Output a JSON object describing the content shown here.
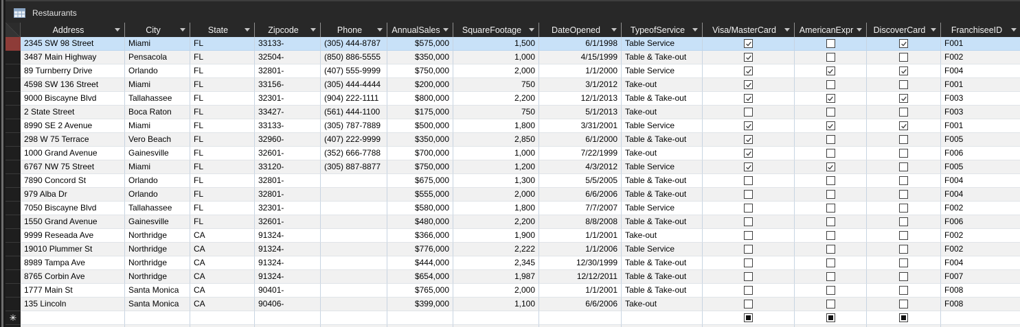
{
  "window": {
    "tab_title": "Restaurants"
  },
  "colors": {
    "chrome_bg": "#282828",
    "selection_row_bg": "#c8e1f8",
    "selected_row_selector": "#8e3c38",
    "header_text": "#f2f2f2",
    "grid_vertical": "#c7d4e2",
    "alt_row_bg": "#f1f1f1"
  },
  "table": {
    "columns": [
      {
        "id": "address",
        "label": "Address"
      },
      {
        "id": "city",
        "label": "City"
      },
      {
        "id": "state",
        "label": "State"
      },
      {
        "id": "zipcode",
        "label": "Zipcode"
      },
      {
        "id": "phone",
        "label": "Phone"
      },
      {
        "id": "annual_sales",
        "label": "AnnualSales"
      },
      {
        "id": "square_footage",
        "label": "SquareFootage"
      },
      {
        "id": "date_opened",
        "label": "DateOpened"
      },
      {
        "id": "type_of_service",
        "label": "TypeofService"
      },
      {
        "id": "visa_mastercard",
        "label": "Visa/MasterCard"
      },
      {
        "id": "american_express",
        "label": "AmericanExpr"
      },
      {
        "id": "discover_card",
        "label": "DiscoverCard"
      },
      {
        "id": "franchisee_id",
        "label": "FranchiseeID"
      }
    ],
    "selected_row_index": 0,
    "rows": [
      {
        "address": "2345 SW 98 Street",
        "city": "Miami",
        "state": "FL",
        "zipcode": "33133-",
        "phone": "(305) 444-8787",
        "annual_sales": "$575,000",
        "square_footage": "1,500",
        "date_opened": "6/1/1998",
        "type_of_service": "Table Service",
        "visa_mastercard": true,
        "american_express": false,
        "discover_card": true,
        "franchisee_id": "F001"
      },
      {
        "address": "3487 Main Highway",
        "city": "Pensacola",
        "state": "FL",
        "zipcode": "32504-",
        "phone": "(850) 886-5555",
        "annual_sales": "$350,000",
        "square_footage": "1,000",
        "date_opened": "4/15/1999",
        "type_of_service": "Table & Take-out",
        "visa_mastercard": true,
        "american_express": false,
        "discover_card": false,
        "franchisee_id": "F002"
      },
      {
        "address": "89 Turnberry Drive",
        "city": "Orlando",
        "state": "FL",
        "zipcode": "32801-",
        "phone": "(407) 555-9999",
        "annual_sales": "$750,000",
        "square_footage": "2,000",
        "date_opened": "1/1/2000",
        "type_of_service": "Table Service",
        "visa_mastercard": true,
        "american_express": true,
        "discover_card": true,
        "franchisee_id": "F004"
      },
      {
        "address": "4598 SW 136 Street",
        "city": "Miami",
        "state": "FL",
        "zipcode": "33156-",
        "phone": "(305) 444-4444",
        "annual_sales": "$200,000",
        "square_footage": "750",
        "date_opened": "3/1/2012",
        "type_of_service": "Take-out",
        "visa_mastercard": true,
        "american_express": false,
        "discover_card": false,
        "franchisee_id": "F001"
      },
      {
        "address": "9000 Biscayne Blvd",
        "city": "Tallahassee",
        "state": "FL",
        "zipcode": "32301-",
        "phone": "(904) 222-1111",
        "annual_sales": "$800,000",
        "square_footage": "2,200",
        "date_opened": "12/1/2013",
        "type_of_service": "Table & Take-out",
        "visa_mastercard": true,
        "american_express": true,
        "discover_card": true,
        "franchisee_id": "F003"
      },
      {
        "address": "2 State Street",
        "city": "Boca Raton",
        "state": "FL",
        "zipcode": "33427-",
        "phone": "(561) 444-1100",
        "annual_sales": "$175,000",
        "square_footage": "750",
        "date_opened": "5/1/2013",
        "type_of_service": "Take-out",
        "visa_mastercard": false,
        "american_express": false,
        "discover_card": false,
        "franchisee_id": "F003"
      },
      {
        "address": "8990 SE 2 Avenue",
        "city": "Miami",
        "state": "FL",
        "zipcode": "33133-",
        "phone": "(305) 787-7889",
        "annual_sales": "$500,000",
        "square_footage": "1,800",
        "date_opened": "3/31/2001",
        "type_of_service": "Table Service",
        "visa_mastercard": true,
        "american_express": true,
        "discover_card": true,
        "franchisee_id": "F001"
      },
      {
        "address": "298 W 75 Terrace",
        "city": "Vero Beach",
        "state": "FL",
        "zipcode": "32960-",
        "phone": "(407) 222-9999",
        "annual_sales": "$350,000",
        "square_footage": "2,850",
        "date_opened": "6/1/2000",
        "type_of_service": "Table & Take-out",
        "visa_mastercard": true,
        "american_express": false,
        "discover_card": false,
        "franchisee_id": "F005"
      },
      {
        "address": "1000 Grand Avenue",
        "city": "Gainesville",
        "state": "FL",
        "zipcode": "32601-",
        "phone": "(352) 666-7788",
        "annual_sales": "$700,000",
        "square_footage": "1,000",
        "date_opened": "7/22/1999",
        "type_of_service": "Take-out",
        "visa_mastercard": true,
        "american_express": false,
        "discover_card": false,
        "franchisee_id": "F006"
      },
      {
        "address": "6767 NW 75 Street",
        "city": "Miami",
        "state": "FL",
        "zipcode": "33120-",
        "phone": "(305) 887-8877",
        "annual_sales": "$750,000",
        "square_footage": "1,200",
        "date_opened": "4/3/2012",
        "type_of_service": "Table Service",
        "visa_mastercard": true,
        "american_express": true,
        "discover_card": false,
        "franchisee_id": "F005"
      },
      {
        "address": "7890 Concord St",
        "city": "Orlando",
        "state": "FL",
        "zipcode": "32801-",
        "phone": "",
        "annual_sales": "$675,000",
        "square_footage": "1,300",
        "date_opened": "5/5/2005",
        "type_of_service": "Table & Take-out",
        "visa_mastercard": false,
        "american_express": false,
        "discover_card": false,
        "franchisee_id": "F004"
      },
      {
        "address": "979 Alba Dr",
        "city": "Orlando",
        "state": "FL",
        "zipcode": "32801-",
        "phone": "",
        "annual_sales": "$555,000",
        "square_footage": "2,000",
        "date_opened": "6/6/2006",
        "type_of_service": "Table & Take-out",
        "visa_mastercard": false,
        "american_express": false,
        "discover_card": false,
        "franchisee_id": "F004"
      },
      {
        "address": "7050 Biscayne Blvd",
        "city": "Tallahassee",
        "state": "FL",
        "zipcode": "32301-",
        "phone": "",
        "annual_sales": "$580,000",
        "square_footage": "1,800",
        "date_opened": "7/7/2007",
        "type_of_service": "Table Service",
        "visa_mastercard": false,
        "american_express": false,
        "discover_card": false,
        "franchisee_id": "F002"
      },
      {
        "address": "1550 Grand Avenue",
        "city": "Gainesville",
        "state": "FL",
        "zipcode": "32601-",
        "phone": "",
        "annual_sales": "$480,000",
        "square_footage": "2,200",
        "date_opened": "8/8/2008",
        "type_of_service": "Table & Take-out",
        "visa_mastercard": false,
        "american_express": false,
        "discover_card": false,
        "franchisee_id": "F006"
      },
      {
        "address": "9999 Reseada Ave",
        "city": "Northridge",
        "state": "CA",
        "zipcode": "91324-",
        "phone": "",
        "annual_sales": "$366,000",
        "square_footage": "1,900",
        "date_opened": "1/1/2001",
        "type_of_service": "Take-out",
        "visa_mastercard": false,
        "american_express": false,
        "discover_card": false,
        "franchisee_id": "F002"
      },
      {
        "address": "19010 Plummer St",
        "city": "Northridge",
        "state": "CA",
        "zipcode": "91324-",
        "phone": "",
        "annual_sales": "$776,000",
        "square_footage": "2,222",
        "date_opened": "1/1/2006",
        "type_of_service": "Table Service",
        "visa_mastercard": false,
        "american_express": false,
        "discover_card": false,
        "franchisee_id": "F002"
      },
      {
        "address": "8989 Tampa Ave",
        "city": "Northridge",
        "state": "CA",
        "zipcode": "91324-",
        "phone": "",
        "annual_sales": "$444,000",
        "square_footage": "2,345",
        "date_opened": "12/30/1999",
        "type_of_service": "Table & Take-out",
        "visa_mastercard": false,
        "american_express": false,
        "discover_card": false,
        "franchisee_id": "F004"
      },
      {
        "address": "8765 Corbin Ave",
        "city": "Northridge",
        "state": "CA",
        "zipcode": "91324-",
        "phone": "",
        "annual_sales": "$654,000",
        "square_footage": "1,987",
        "date_opened": "12/12/2011",
        "type_of_service": "Table & Take-out",
        "visa_mastercard": false,
        "american_express": false,
        "discover_card": false,
        "franchisee_id": "F007"
      },
      {
        "address": "1777 Main St",
        "city": "Santa Monica",
        "state": "CA",
        "zipcode": "90401-",
        "phone": "",
        "annual_sales": "$765,000",
        "square_footage": "2,000",
        "date_opened": "1/1/2001",
        "type_of_service": "Table & Take-out",
        "visa_mastercard": false,
        "american_express": false,
        "discover_card": false,
        "franchisee_id": "F008"
      },
      {
        "address": "135 Lincoln",
        "city": "Santa Monica",
        "state": "CA",
        "zipcode": "90406-",
        "phone": "",
        "annual_sales": "$399,000",
        "square_footage": "1,100",
        "date_opened": "6/6/2006",
        "type_of_service": "Take-out",
        "visa_mastercard": false,
        "american_express": false,
        "discover_card": false,
        "franchisee_id": "F008"
      }
    ],
    "new_row": {
      "selector_marker": "✳",
      "checkbox_state": "null"
    }
  }
}
